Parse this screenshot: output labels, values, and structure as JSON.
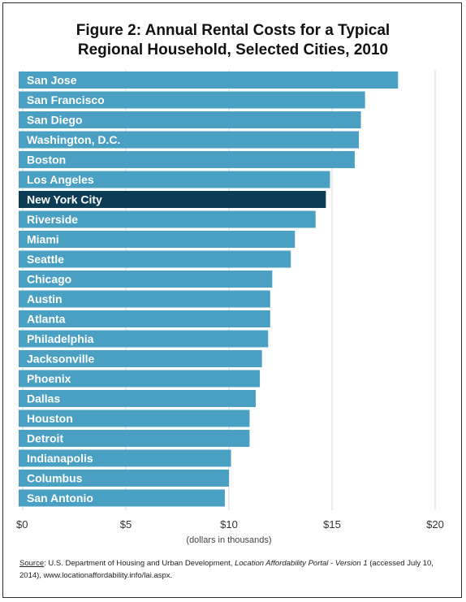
{
  "title_lines": [
    "Figure 2: Annual Rental Costs for a Typical",
    "Regional Household, Selected Cities, 2010"
  ],
  "source": {
    "label": "Source",
    "text_before": ": U.S. Department of Housing and Urban Development, ",
    "italic": "Location Affordability Portal - Version 1",
    "text_after": " (accessed July 10, 2014), www.locationaffordability.info/lai.aspx."
  },
  "colors": {
    "bar": "#4aa0c2",
    "highlight": "#0c3d55",
    "grid": "#d8d8d8"
  },
  "chart_data": {
    "type": "bar",
    "orientation": "horizontal",
    "title": "Figure 2: Annual Rental Costs for a Typical Regional Household, Selected Cities, 2010",
    "xlabel": "(dollars in thousands)",
    "ylabel": "",
    "xlim": [
      0,
      20
    ],
    "xticks": [
      {
        "value": 0,
        "label": "$0"
      },
      {
        "value": 5,
        "label": "$5"
      },
      {
        "value": 10,
        "label": "$10"
      },
      {
        "value": 15,
        "label": "$15"
      },
      {
        "value": 20,
        "label": "$20"
      }
    ],
    "grid": "vertical",
    "legend": "none",
    "highlighted": "New York City",
    "categories": [
      "San Jose",
      "San Francisco",
      "San Diego",
      "Washington, D.C.",
      "Boston",
      "Los Angeles",
      "New York City",
      "Riverside",
      "Miami",
      "Seattle",
      "Chicago",
      "Austin",
      "Atlanta",
      "Philadelphia",
      "Jacksonville",
      "Phoenix",
      "Dallas",
      "Houston",
      "Detroit",
      "Indianapolis",
      "Columbus",
      "San Antonio"
    ],
    "values": [
      18.2,
      16.6,
      16.4,
      16.3,
      16.1,
      14.9,
      14.7,
      14.2,
      13.2,
      13.0,
      12.1,
      12.0,
      12.0,
      11.9,
      11.6,
      11.5,
      11.3,
      11.0,
      11.0,
      10.1,
      10.0,
      9.8
    ]
  }
}
